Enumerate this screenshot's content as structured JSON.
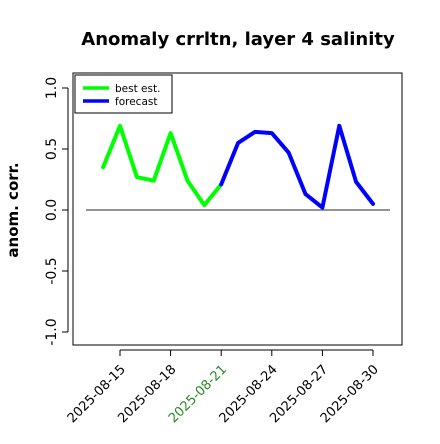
{
  "chart_data": {
    "type": "line",
    "title": "Anomaly crrltn, layer 4 salinity",
    "ylabel": "anom. corr.",
    "xlabel": "",
    "ylim": [
      -1.0,
      1.0
    ],
    "xlim": [
      "2025-08-12",
      "2025-09-01"
    ],
    "yticks": [
      "-1.0",
      "-0.5",
      "0.0",
      "0.5",
      "1.0"
    ],
    "xticks": [
      "2025-08-15",
      "2025-08-18",
      "2025-08-21",
      "2025-08-24",
      "2025-08-27",
      "2025-08-30"
    ],
    "highlighted_xtick": "2025-08-21",
    "highlight_color": "#228B22",
    "reference_line_y": 0.0,
    "legend_position": "top-left",
    "grid": false,
    "series": [
      {
        "name": "best est.",
        "color": "#00ff00",
        "points": [
          {
            "x": "2025-08-14",
            "y": 0.35
          },
          {
            "x": "2025-08-15",
            "y": 0.69
          },
          {
            "x": "2025-08-16",
            "y": 0.27
          },
          {
            "x": "2025-08-17",
            "y": 0.24
          },
          {
            "x": "2025-08-18",
            "y": 0.63
          },
          {
            "x": "2025-08-19",
            "y": 0.24
          },
          {
            "x": "2025-08-20",
            "y": 0.04
          },
          {
            "x": "2025-08-21",
            "y": 0.21
          }
        ]
      },
      {
        "name": "forecast",
        "color": "#0000ff",
        "points": [
          {
            "x": "2025-08-21",
            "y": 0.21
          },
          {
            "x": "2025-08-22",
            "y": 0.55
          },
          {
            "x": "2025-08-23",
            "y": 0.64
          },
          {
            "x": "2025-08-24",
            "y": 0.63
          },
          {
            "x": "2025-08-25",
            "y": 0.47
          },
          {
            "x": "2025-08-26",
            "y": 0.13
          },
          {
            "x": "2025-08-27",
            "y": 0.02
          },
          {
            "x": "2025-08-28",
            "y": 0.69
          },
          {
            "x": "2025-08-29",
            "y": 0.23
          },
          {
            "x": "2025-08-30",
            "y": 0.05
          }
        ]
      }
    ]
  }
}
